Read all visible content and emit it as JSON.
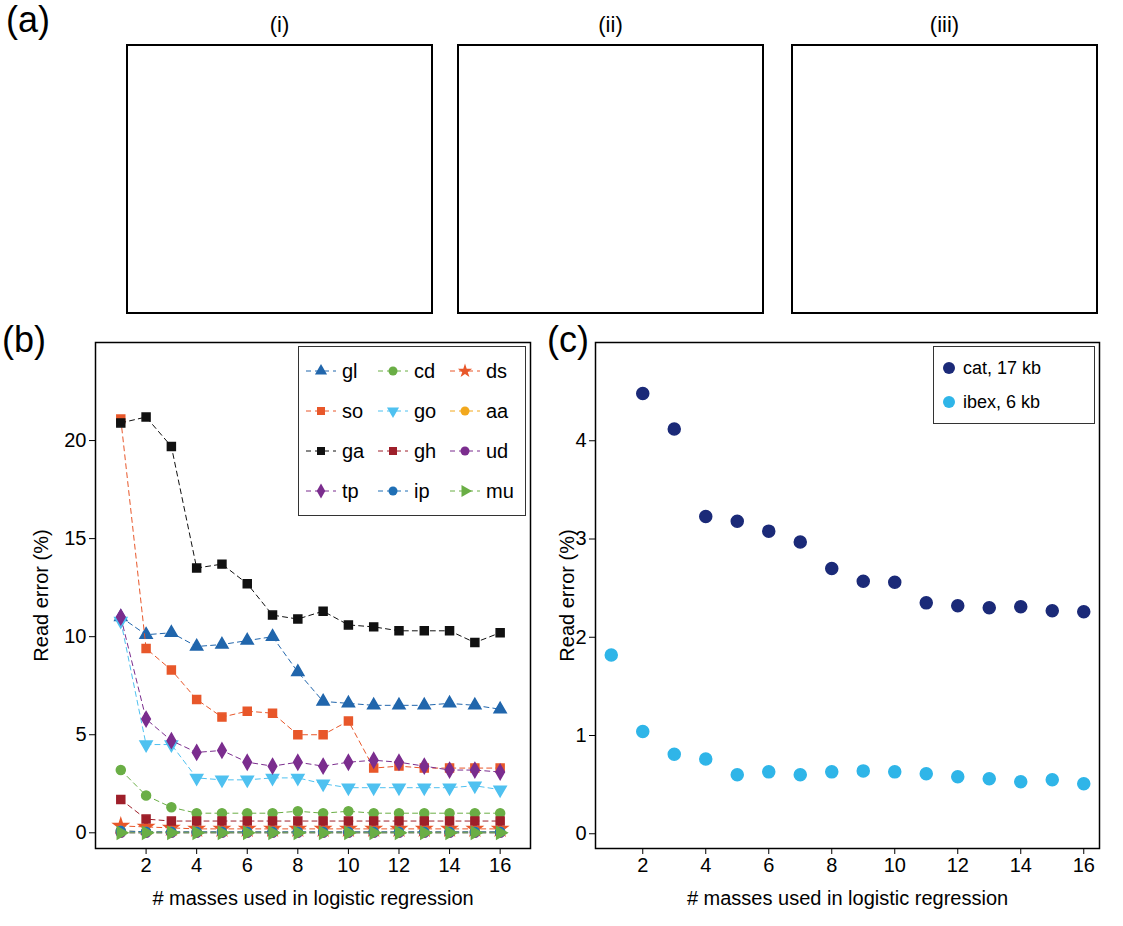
{
  "panel_a": {
    "panel": "(a)",
    "images": [
      {
        "label": "(i)"
      },
      {
        "label": "(ii)"
      },
      {
        "label": "(iii)"
      }
    ]
  },
  "chart_data": [
    {
      "panel": "(b)",
      "type": "line",
      "x_label": "# masses used in logistic regression",
      "y_label": "Read error (%)",
      "x": [
        1,
        2,
        3,
        4,
        5,
        6,
        7,
        8,
        9,
        10,
        11,
        12,
        13,
        14,
        15,
        16
      ],
      "xlim": [
        0,
        17.2
      ],
      "xticks": [
        2,
        4,
        6,
        8,
        10,
        12,
        14,
        16
      ],
      "ylim": [
        -0.8,
        25
      ],
      "yticks": [
        0,
        5,
        10,
        15,
        20
      ],
      "legend": "upper right",
      "line_style": "dashed",
      "series": [
        {
          "name": "gl",
          "color": "#2166ac",
          "marker": "triangle",
          "values": [
            11.0,
            10.1,
            10.2,
            9.5,
            9.6,
            9.8,
            10.0,
            8.2,
            6.7,
            6.6,
            6.5,
            6.5,
            6.5,
            6.6,
            6.5,
            6.3
          ]
        },
        {
          "name": "cd",
          "color": "#6aae45",
          "marker": "circle",
          "values": [
            3.2,
            1.9,
            1.3,
            1.0,
            1.0,
            1.0,
            1.0,
            1.1,
            1.0,
            1.1,
            1.0,
            1.0,
            1.0,
            1.0,
            1.0,
            1.0
          ]
        },
        {
          "name": "ds",
          "color": "#e8572a",
          "marker": "star",
          "values": [
            0.35,
            0.3,
            0.25,
            0.2,
            0.2,
            0.2,
            0.2,
            0.2,
            0.2,
            0.2,
            0.2,
            0.2,
            0.2,
            0.2,
            0.2,
            0.2
          ]
        },
        {
          "name": "so",
          "color": "#e8572a",
          "marker": "square",
          "values": [
            21.1,
            9.4,
            8.3,
            6.8,
            5.9,
            6.2,
            6.1,
            5.0,
            5.0,
            5.7,
            3.3,
            3.4,
            3.3,
            3.3,
            3.3,
            3.3
          ]
        },
        {
          "name": "go",
          "color": "#4fc1f0",
          "marker": "triangle-down",
          "values": [
            10.8,
            4.5,
            4.5,
            2.8,
            2.7,
            2.7,
            2.8,
            2.8,
            2.5,
            2.3,
            2.3,
            2.3,
            2.3,
            2.3,
            2.4,
            2.2
          ]
        },
        {
          "name": "aa",
          "color": "#f2a81d",
          "marker": "circle",
          "values": [
            0.1,
            0.05,
            0.05,
            0.05,
            0.05,
            0.05,
            0.05,
            0.05,
            0.05,
            0.05,
            0.05,
            0.05,
            0.05,
            0.05,
            0.05,
            0.05
          ]
        },
        {
          "name": "ga",
          "color": "#111111",
          "marker": "square",
          "values": [
            20.9,
            21.2,
            19.7,
            13.5,
            13.7,
            12.7,
            11.1,
            10.9,
            11.3,
            10.6,
            10.5,
            10.3,
            10.3,
            10.3,
            9.7,
            10.2
          ]
        },
        {
          "name": "gh",
          "color": "#9e1f2a",
          "marker": "square",
          "values": [
            1.7,
            0.7,
            0.6,
            0.6,
            0.6,
            0.6,
            0.6,
            0.6,
            0.6,
            0.6,
            0.6,
            0.6,
            0.6,
            0.6,
            0.6,
            0.6
          ]
        },
        {
          "name": "ud",
          "color": "#7b2d8e",
          "marker": "circle",
          "values": [
            0.0,
            0.0,
            0.0,
            0.0,
            0.0,
            0.0,
            0.0,
            0.0,
            0.0,
            0.0,
            0.0,
            0.0,
            0.0,
            0.0,
            0.0,
            0.0
          ]
        },
        {
          "name": "tp",
          "color": "#7b2d8e",
          "marker": "diamond",
          "values": [
            11.0,
            5.8,
            4.7,
            4.1,
            4.2,
            3.6,
            3.4,
            3.6,
            3.4,
            3.6,
            3.7,
            3.6,
            3.4,
            3.2,
            3.2,
            3.1
          ]
        },
        {
          "name": "ip",
          "color": "#1f6fb5",
          "marker": "circle",
          "values": [
            0.1,
            0.05,
            0.05,
            0.05,
            0.05,
            0.05,
            0.05,
            0.05,
            0.05,
            0.05,
            0.05,
            0.05,
            0.05,
            0.05,
            0.05,
            0.05
          ]
        },
        {
          "name": "mu",
          "color": "#6aae45",
          "marker": "triangle-right",
          "values": [
            0.0,
            0.0,
            0.0,
            0.0,
            0.0,
            0.0,
            0.0,
            0.0,
            0.0,
            0.0,
            0.0,
            0.0,
            0.0,
            0.0,
            0.0,
            0.0
          ]
        }
      ]
    },
    {
      "panel": "(c)",
      "type": "scatter",
      "x_label": "# masses used in logistic regression",
      "y_label": "Read error (%)",
      "x": [
        1,
        2,
        3,
        4,
        5,
        6,
        7,
        8,
        9,
        10,
        11,
        12,
        13,
        14,
        15,
        16
      ],
      "xlim": [
        0.5,
        16.5
      ],
      "xticks": [
        2,
        4,
        6,
        8,
        10,
        12,
        14,
        16
      ],
      "ylim": [
        -0.15,
        5.0
      ],
      "yticks": [
        0,
        1,
        2,
        3,
        4
      ],
      "legend": "upper right",
      "marker": "circle",
      "series": [
        {
          "name": "cat, 17 kb",
          "color": "#1b2a78",
          "values": [
            null,
            4.48,
            4.12,
            3.23,
            3.18,
            3.08,
            2.97,
            2.7,
            2.57,
            2.56,
            2.35,
            2.32,
            2.3,
            2.31,
            2.27,
            2.26
          ]
        },
        {
          "name": "ibex, 6 kb",
          "color": "#2fb5e8",
          "values": [
            1.82,
            1.04,
            0.81,
            0.76,
            0.6,
            0.63,
            0.6,
            0.63,
            0.64,
            0.63,
            0.61,
            0.58,
            0.56,
            0.53,
            0.55,
            0.51
          ]
        }
      ]
    }
  ]
}
